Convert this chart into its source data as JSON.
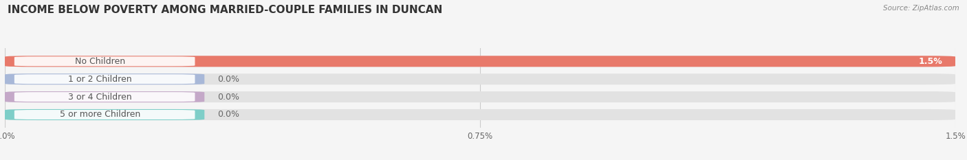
{
  "title": "INCOME BELOW POVERTY AMONG MARRIED-COUPLE FAMILIES IN DUNCAN",
  "source": "Source: ZipAtlas.com",
  "categories": [
    "No Children",
    "1 or 2 Children",
    "3 or 4 Children",
    "5 or more Children"
  ],
  "values": [
    1.5,
    0.0,
    0.0,
    0.0
  ],
  "bar_colors": [
    "#E8796A",
    "#A8B8D8",
    "#C4A8C8",
    "#7ECEC8"
  ],
  "xlim": [
    0,
    1.5
  ],
  "xticks": [
    0.0,
    0.75,
    1.5
  ],
  "xtick_labels": [
    "0.0%",
    "0.75%",
    "1.5%"
  ],
  "background_color": "#f5f5f5",
  "bar_bg_color": "#e2e2e2",
  "title_fontsize": 11,
  "label_fontsize": 9,
  "value_fontsize": 9,
  "bar_height": 0.62,
  "label_text_color": "#555555",
  "value_color_bar": "#ffffff",
  "value_color_outside": "#666666",
  "grid_color": "#cccccc",
  "rounding_size": 0.05
}
